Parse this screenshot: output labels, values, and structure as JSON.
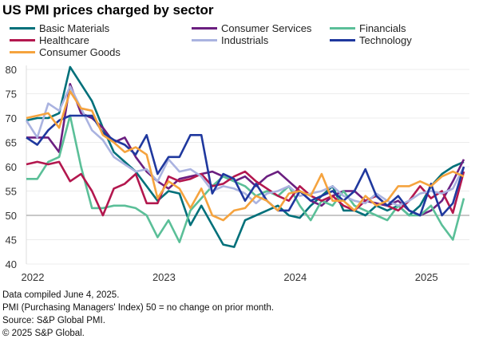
{
  "chart_data": {
    "type": "line",
    "title": "US PMI prices charged by sector",
    "xlabel": "",
    "ylabel": "",
    "ylim": [
      40,
      80
    ],
    "yticks": [
      40,
      45,
      50,
      55,
      60,
      65,
      70,
      75,
      80
    ],
    "xtick_labels": [
      "2022",
      "2023",
      "2024",
      "2025"
    ],
    "x_start": "2022-01",
    "x_end": "2025-05",
    "x_frequency": "monthly",
    "reference_line": 50,
    "grid": true,
    "legend_position": "top",
    "series": [
      {
        "name": "Basic Materials",
        "color": "#00707a",
        "values": [
          69.5,
          70,
          70,
          71,
          80.5,
          77,
          73.5,
          68,
          63,
          61,
          59,
          56,
          53,
          55,
          54.5,
          48,
          52,
          48,
          44,
          43.5,
          49,
          50,
          51,
          52,
          50,
          49.5,
          52,
          54,
          56,
          51,
          51,
          50,
          52,
          51,
          52,
          50,
          52,
          56,
          58.5,
          60,
          61
        ]
      },
      {
        "name": "Consumer Services",
        "color": "#6b1f80",
        "values": [
          66,
          66,
          66,
          63,
          77,
          71,
          70,
          68,
          65,
          66,
          62,
          59,
          57,
          55.5,
          57.5,
          58,
          58.5,
          59,
          58,
          57,
          58,
          56,
          58,
          59,
          57,
          55,
          53,
          52,
          54,
          55,
          55,
          53,
          52.5,
          52,
          53,
          51,
          50,
          51,
          53,
          57,
          61.5
        ]
      },
      {
        "name": "Financials",
        "color": "#5bbf98",
        "values": [
          57.5,
          57.5,
          61,
          62,
          70.5,
          60,
          51.5,
          51.5,
          52,
          52,
          51.5,
          50,
          45.5,
          49,
          44.5,
          51,
          53.5,
          56,
          58,
          57,
          56,
          54,
          55,
          54,
          56,
          52,
          49,
          53,
          52,
          55,
          52,
          51,
          50,
          49,
          52,
          50,
          50,
          52,
          48,
          45,
          53.5
        ]
      },
      {
        "name": "Healthcare",
        "color": "#b3174e",
        "values": [
          60.5,
          61,
          60.5,
          61,
          57,
          58.5,
          55,
          50,
          55.5,
          56.5,
          58.5,
          52.5,
          52.5,
          58,
          57,
          57.5,
          58.5,
          56,
          56.5,
          58,
          59,
          57,
          55.5,
          54,
          53,
          56,
          54,
          53,
          54,
          52,
          51,
          53,
          54,
          52,
          51,
          53,
          56,
          53.5,
          55,
          50.5,
          59
        ]
      },
      {
        "name": "Industrials",
        "color": "#aab3e0",
        "values": [
          69.5,
          66,
          73,
          71.5,
          76.5,
          72,
          67.5,
          65.5,
          62,
          60.5,
          59,
          59.5,
          57,
          61.5,
          59,
          59.5,
          58,
          55,
          56,
          55.5,
          54.5,
          52.5,
          54.5,
          55,
          56,
          54,
          54.5,
          55,
          56,
          54,
          53,
          52.5,
          54.5,
          53,
          52,
          53,
          54.5,
          55,
          54.5,
          55.5,
          60
        ]
      },
      {
        "name": "Technology",
        "color": "#1f389e",
        "values": [
          66,
          64.5,
          67.5,
          69.5,
          70.5,
          70.5,
          70.5,
          67,
          65.5,
          64.5,
          62.5,
          66.5,
          58.5,
          62,
          62,
          66.5,
          66.5,
          54.5,
          58.5,
          57.5,
          53,
          56.5,
          53,
          51,
          51,
          55,
          53,
          54,
          55,
          53,
          55,
          59.5,
          54,
          52,
          54,
          51,
          50,
          56.5,
          50,
          52.5,
          60
        ]
      },
      {
        "name": "Consumer Goods",
        "color": "#f5a33e",
        "values": [
          70,
          70.5,
          71,
          68,
          75.5,
          72,
          71.5,
          66.5,
          65,
          63,
          64,
          62.5,
          53.5,
          57,
          55.5,
          51.5,
          55.5,
          50,
          49,
          51,
          51.5,
          54,
          53,
          51,
          54.5,
          55,
          54,
          58.5,
          53,
          53,
          51,
          54,
          52,
          53,
          56,
          56,
          57,
          56,
          58,
          59,
          58
        ]
      }
    ]
  },
  "notes": [
    "Data compiled June 4, 2025.",
    "PMI (Purchasing Managers' Index) 50 =  no change on prior month.",
    "Source: S&P Global PMI.",
    "© 2025 S&P Global."
  ]
}
